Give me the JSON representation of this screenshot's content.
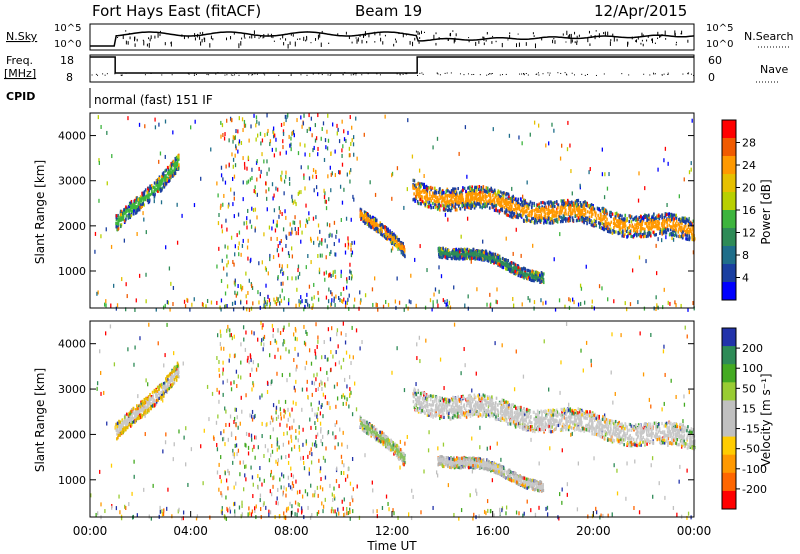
{
  "header": {
    "station": "Fort Hays East (fitACF)",
    "beam": "Beam 19",
    "date": "12/Apr/2015"
  },
  "summary": {
    "nsky_label": "N.Sky",
    "nsearch_label": "N.Search",
    "freq_label_1": "Freq.",
    "freq_label_2": "[MHz]",
    "nave_label": "Nave",
    "cpid_label": "CPID",
    "cpid_value": "normal (fast) 151 IF",
    "nsky_ticks": [
      "10^5",
      "10^0"
    ],
    "nsearch_ticks": [
      "10^5",
      "10^0"
    ],
    "freq_ticks": [
      "18",
      "8"
    ],
    "nave_ticks": [
      "60",
      "0"
    ]
  },
  "chart_data": [
    {
      "type": "heatmap",
      "name": "power",
      "ylabel": "Slant Range [km]",
      "ylim": [
        180,
        4500
      ],
      "xlim": [
        0,
        24
      ],
      "yticks": [
        1000,
        2000,
        3000,
        4000
      ],
      "colorbar_label": "Power [dB]",
      "colorbar_ticks": [
        "28",
        "24",
        "20",
        "16",
        "12",
        "8",
        "4"
      ],
      "colorbar_colors": [
        "#ff0000",
        "#f05a00",
        "#ff9900",
        "#e6c000",
        "#b8d000",
        "#3db43d",
        "#2e8b57",
        "#1f6e8a",
        "#1a3fa0",
        "#0000ff"
      ],
      "features": [
        {
          "t0": 1.0,
          "t1": 3.5,
          "r0": 2000,
          "r1": 3500,
          "width": 350,
          "core": "#3db43d",
          "edge": "#1a3fa0"
        },
        {
          "t0": 10.7,
          "t1": 12.5,
          "r0": 2350,
          "r1": 1400,
          "width": 260,
          "core": "#ff9900",
          "edge": "#1a3fa0"
        },
        {
          "t0": 13.8,
          "t1": 18.0,
          "r0": 1550,
          "r1": 950,
          "width": 220,
          "core": "#2e8b57",
          "edge": "#1a3fa0"
        },
        {
          "t0": 12.8,
          "t1": 24.0,
          "r0": 2800,
          "r1": 1900,
          "width": 480,
          "core": "#ff9900",
          "edge": "#1a3fa0"
        }
      ]
    },
    {
      "type": "heatmap",
      "name": "velocity",
      "ylabel": "Slant Range [km]",
      "xlabel": "Time UT",
      "ylim": [
        180,
        4500
      ],
      "xlim": [
        0,
        24
      ],
      "yticks": [
        1000,
        2000,
        3000,
        4000
      ],
      "xticks": [
        "00:00",
        "04:00",
        "08:00",
        "12:00",
        "16:00",
        "20:00",
        "00:00"
      ],
      "colorbar_label": "Velocity [m s⁻¹]",
      "colorbar_ticks": [
        "200",
        "100",
        "50",
        "15",
        "-15",
        "-50",
        "-100",
        "-200"
      ],
      "colorbar_colors": [
        "#2233aa",
        "#2e8b57",
        "#44aa22",
        "#99cc33",
        "#c0c0c0",
        "#c0c0c0",
        "#ffcc00",
        "#ff9900",
        "#ff6600",
        "#ff0000"
      ],
      "features": [
        {
          "t0": 1.0,
          "t1": 3.5,
          "r0": 2000,
          "r1": 3500,
          "width": 350,
          "core": "#c8c8c8",
          "edge": "#e6b800"
        },
        {
          "t0": 10.7,
          "t1": 12.5,
          "r0": 2350,
          "r1": 1400,
          "width": 260,
          "core": "#88c060",
          "edge": "#c8c8c8"
        },
        {
          "t0": 13.8,
          "t1": 18.0,
          "r0": 1550,
          "r1": 950,
          "width": 220,
          "core": "#c8c8c8",
          "edge": "#b0b0b0"
        },
        {
          "t0": 12.8,
          "t1": 24.0,
          "r0": 2800,
          "r1": 1900,
          "width": 480,
          "core": "#c8c8c8",
          "edge": "#d0d0d0"
        }
      ]
    }
  ]
}
